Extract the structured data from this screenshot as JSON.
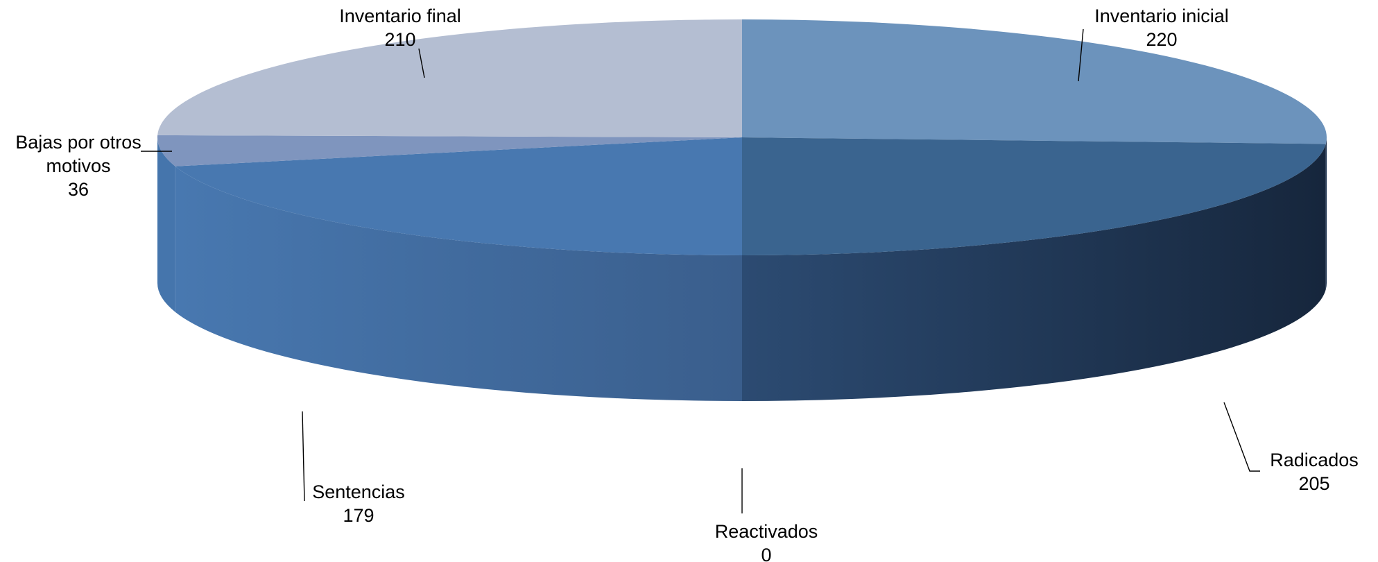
{
  "chart_data": {
    "type": "pie",
    "style": "3d",
    "title": "",
    "slices": [
      {
        "label": "Inventario inicial",
        "value": 220,
        "value_text": "220",
        "color": "#6C93BC"
      },
      {
        "label": "Radicados",
        "value": 205,
        "value_text": "205",
        "color": "#3A648F"
      },
      {
        "label": "Reactivados",
        "value": 0,
        "value_text": "0",
        "color": "#3A6595"
      },
      {
        "label": "Sentencias",
        "value": 179,
        "value_text": "179",
        "color": "#4878B0"
      },
      {
        "label": "Bajas por otros motivos",
        "value": 36,
        "value_text": "36",
        "color": "#7F95BE"
      },
      {
        "label": "Inventario final",
        "value": 210,
        "value_text": "210",
        "color": "#B4BED2"
      }
    ],
    "data_labels": [
      {
        "lines": [
          "Inventario inicial",
          "220"
        ]
      },
      {
        "lines": [
          "Radicados",
          "205"
        ]
      },
      {
        "lines": [
          "Reactivados",
          "0"
        ]
      },
      {
        "lines": [
          "Sentencias",
          "179"
        ]
      },
      {
        "lines": [
          "Bajas por otros",
          "motivos",
          "36"
        ]
      },
      {
        "lines": [
          "Inventario final",
          "210"
        ]
      }
    ],
    "legend": "none"
  }
}
